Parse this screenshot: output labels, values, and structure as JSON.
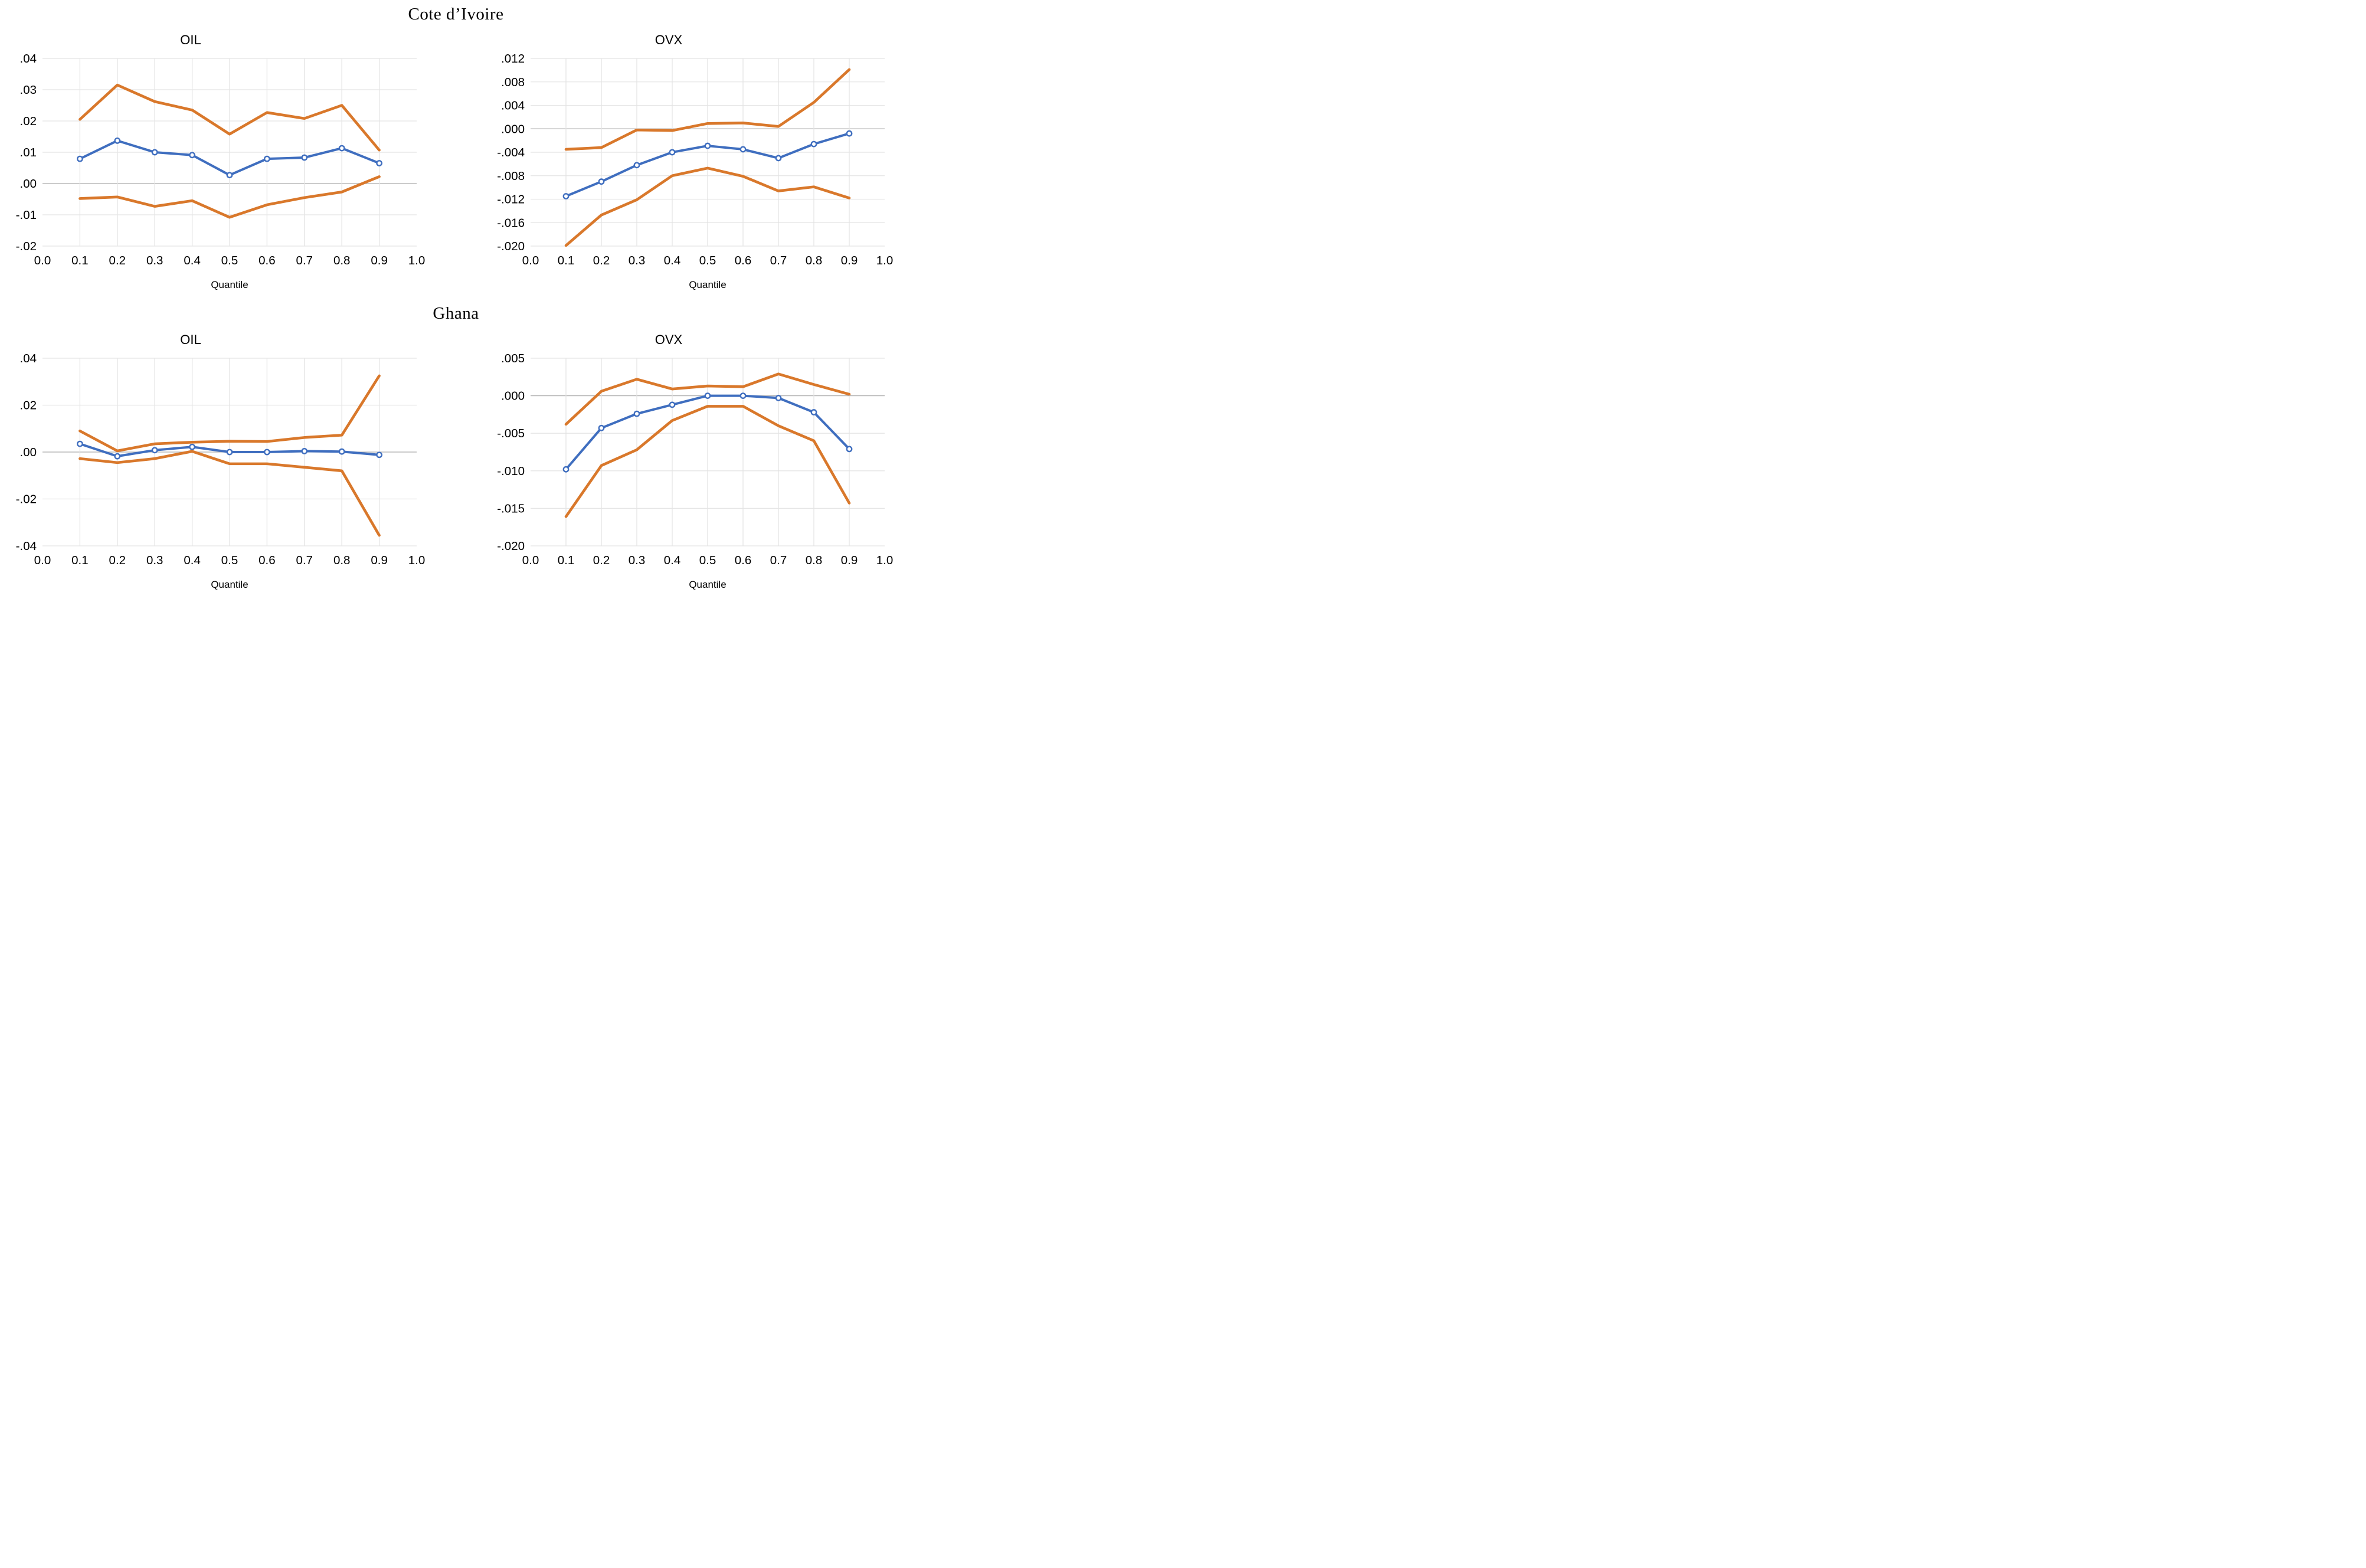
{
  "page": {
    "title_top": "Cote d’Ivoire",
    "title_middle": "Ghana",
    "colors": {
      "line_main": "#3F6EBF",
      "line_band": "#D9782B",
      "grid": "#E4E4E4",
      "grid_zero": "#ACACAC",
      "marker_fill": "#FFFFFF",
      "text": "#000000",
      "background": "#FFFFFF"
    }
  },
  "chart_data": [
    {
      "type": "line",
      "group": "Cote d’Ivoire",
      "title": "OIL",
      "xlabel": "Quantile",
      "xlim": [
        0.0,
        1.0
      ],
      "ylim": [
        -0.02,
        0.04
      ],
      "grid": true,
      "legend": "none",
      "x": [
        0.1,
        0.2,
        0.3,
        0.4,
        0.5,
        0.6,
        0.7,
        0.8,
        0.9
      ],
      "xticks": {
        "values": [
          0.0,
          0.1,
          0.2,
          0.3,
          0.4,
          0.5,
          0.6,
          0.7,
          0.8,
          0.9,
          1.0
        ],
        "labels": [
          "0.0",
          "0.1",
          "0.2",
          "0.3",
          "0.4",
          "0.5",
          "0.6",
          "0.7",
          "0.8",
          "0.9",
          "1.0"
        ]
      },
      "yticks": {
        "values": [
          0.04,
          0.03,
          0.02,
          0.01,
          0.0,
          -0.01,
          -0.02
        ],
        "labels": [
          ".04",
          ".03",
          ".02",
          ".01",
          ".00",
          "-.01",
          "-.02"
        ]
      },
      "series": [
        {
          "name": "upper-confidence-band",
          "role": "band",
          "marker": false,
          "values": [
            0.0205,
            0.0315,
            0.0262,
            0.0235,
            0.0158,
            0.0227,
            0.0208,
            0.025,
            0.0107
          ]
        },
        {
          "name": "quantile-coefficient",
          "role": "main",
          "marker": true,
          "values": [
            0.0079,
            0.0137,
            0.01,
            0.0091,
            0.0027,
            0.0079,
            0.0083,
            0.0113,
            0.0065
          ]
        },
        {
          "name": "lower-confidence-band",
          "role": "band",
          "marker": false,
          "values": [
            -0.0048,
            -0.0043,
            -0.0073,
            -0.0055,
            -0.0108,
            -0.0068,
            -0.0045,
            -0.0027,
            0.0022
          ]
        }
      ]
    },
    {
      "type": "line",
      "group": "Cote d’Ivoire",
      "title": "OVX",
      "xlabel": "Quantile",
      "xlim": [
        0.0,
        1.0
      ],
      "ylim": [
        -0.02,
        0.012
      ],
      "grid": true,
      "legend": "none",
      "x": [
        0.1,
        0.2,
        0.3,
        0.4,
        0.5,
        0.6,
        0.7,
        0.8,
        0.9
      ],
      "xticks": {
        "values": [
          0.0,
          0.1,
          0.2,
          0.3,
          0.4,
          0.5,
          0.6,
          0.7,
          0.8,
          0.9,
          1.0
        ],
        "labels": [
          "0.0",
          "0.1",
          "0.2",
          "0.3",
          "0.4",
          "0.5",
          "0.6",
          "0.7",
          "0.8",
          "0.9",
          "1.0"
        ]
      },
      "yticks": {
        "values": [
          0.012,
          0.008,
          0.004,
          0.0,
          -0.004,
          -0.008,
          -0.012,
          -0.016,
          -0.02
        ],
        "labels": [
          ".012",
          ".008",
          ".004",
          ".000",
          "-.004",
          "-.008",
          "-.012",
          "-.016",
          "-.020"
        ]
      },
      "series": [
        {
          "name": "upper-confidence-band",
          "role": "band",
          "marker": false,
          "values": [
            -0.0035,
            -0.0032,
            -0.0002,
            -0.0003,
            0.0009,
            0.001,
            0.0004,
            0.0045,
            0.0101
          ]
        },
        {
          "name": "quantile-coefficient",
          "role": "main",
          "marker": true,
          "values": [
            -0.0115,
            -0.009,
            -0.0062,
            -0.004,
            -0.0029,
            -0.0035,
            -0.005,
            -0.0026,
            -0.0008
          ]
        },
        {
          "name": "lower-confidence-band",
          "role": "band",
          "marker": false,
          "values": [
            -0.0199,
            -0.0147,
            -0.0121,
            -0.008,
            -0.0067,
            -0.0081,
            -0.0106,
            -0.0099,
            -0.0118
          ]
        }
      ]
    },
    {
      "type": "line",
      "group": "Ghana",
      "title": "OIL",
      "xlabel": "Quantile",
      "xlim": [
        0.0,
        1.0
      ],
      "ylim": [
        -0.04,
        0.04
      ],
      "grid": true,
      "legend": "none",
      "x": [
        0.1,
        0.2,
        0.3,
        0.4,
        0.5,
        0.6,
        0.7,
        0.8,
        0.9
      ],
      "xticks": {
        "values": [
          0.0,
          0.1,
          0.2,
          0.3,
          0.4,
          0.5,
          0.6,
          0.7,
          0.8,
          0.9,
          1.0
        ],
        "labels": [
          "0.0",
          "0.1",
          "0.2",
          "0.3",
          "0.4",
          "0.5",
          "0.6",
          "0.7",
          "0.8",
          "0.9",
          "1.0"
        ]
      },
      "yticks": {
        "values": [
          0.04,
          0.02,
          0.0,
          -0.02,
          -0.04
        ],
        "labels": [
          ".04",
          ".02",
          ".00",
          "-.02",
          "-.04"
        ]
      },
      "series": [
        {
          "name": "upper-confidence-band",
          "role": "band",
          "marker": false,
          "values": [
            0.009,
            0.0005,
            0.0035,
            0.0042,
            0.0046,
            0.0045,
            0.0062,
            0.0072,
            0.0325
          ]
        },
        {
          "name": "quantile-coefficient",
          "role": "main",
          "marker": true,
          "values": [
            0.0035,
            -0.0018,
            0.0008,
            0.0022,
            0.0,
            0.0,
            0.0004,
            0.0002,
            -0.0012
          ]
        },
        {
          "name": "lower-confidence-band",
          "role": "band",
          "marker": false,
          "values": [
            -0.0028,
            -0.0045,
            -0.0028,
            0.0003,
            -0.005,
            -0.005,
            -0.0065,
            -0.008,
            -0.0355
          ]
        }
      ]
    },
    {
      "type": "line",
      "group": "Ghana",
      "title": "OVX",
      "xlabel": "Quantile",
      "xlim": [
        0.0,
        1.0
      ],
      "ylim": [
        -0.02,
        0.005
      ],
      "grid": true,
      "legend": "none",
      "x": [
        0.1,
        0.2,
        0.3,
        0.4,
        0.5,
        0.6,
        0.7,
        0.8,
        0.9
      ],
      "xticks": {
        "values": [
          0.0,
          0.1,
          0.2,
          0.3,
          0.4,
          0.5,
          0.6,
          0.7,
          0.8,
          0.9,
          1.0
        ],
        "labels": [
          "0.0",
          "0.1",
          "0.2",
          "0.3",
          "0.4",
          "0.5",
          "0.6",
          "0.7",
          "0.8",
          "0.9",
          "1.0"
        ]
      },
      "yticks": {
        "values": [
          0.005,
          0.0,
          -0.005,
          -0.01,
          -0.015,
          -0.02
        ],
        "labels": [
          ".005",
          ".000",
          "-.005",
          "-.010",
          "-.015",
          "-.020"
        ]
      },
      "series": [
        {
          "name": "upper-confidence-band",
          "role": "band",
          "marker": false,
          "values": [
            -0.0038,
            0.0006,
            0.0022,
            0.0009,
            0.0013,
            0.0012,
            0.0029,
            0.0015,
            0.0002
          ]
        },
        {
          "name": "quantile-coefficient",
          "role": "main",
          "marker": true,
          "values": [
            -0.0098,
            -0.0043,
            -0.0024,
            -0.0012,
            0.0,
            0.0,
            -0.0003,
            -0.0022,
            -0.0071
          ]
        },
        {
          "name": "lower-confidence-band",
          "role": "band",
          "marker": false,
          "values": [
            -0.0161,
            -0.0093,
            -0.0072,
            -0.0033,
            -0.0014,
            -0.0014,
            -0.004,
            -0.006,
            -0.0143
          ]
        }
      ]
    }
  ]
}
